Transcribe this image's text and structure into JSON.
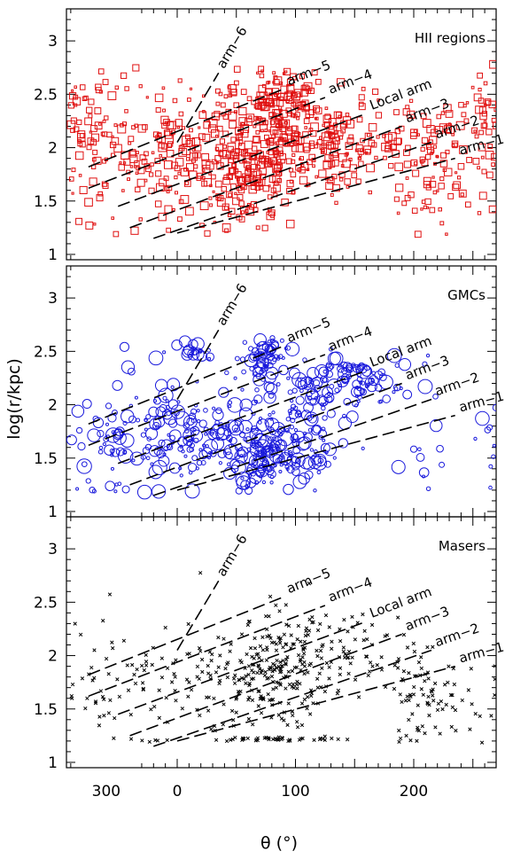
{
  "chart_data": {
    "type": "scatter",
    "xlabel": "θ (°)",
    "ylabel": "log(r/kpc)",
    "xlim": [
      330,
      270
    ],
    "x_axis_note": "Galactic azimuth; axis wraps from 330 through 0/360 down to 270",
    "x_tick_labels": [
      {
        "theta": 300,
        "label": "300"
      },
      {
        "theta": 0,
        "label": "0"
      },
      {
        "theta": 100,
        "label": "100"
      },
      {
        "theta": 200,
        "label": "200"
      }
    ],
    "ylim": [
      0.95,
      3.3
    ],
    "y_tick_labels": [
      "1",
      "1.5",
      "2",
      "2.5",
      "3"
    ],
    "y_ticks": [
      1,
      1.5,
      2,
      2.5,
      3
    ],
    "arms": [
      {
        "name": "arm-6",
        "label": "arm−6",
        "start": [
          0,
          2.05
        ],
        "end": [
          35,
          2.7
        ]
      },
      {
        "name": "arm-5",
        "label": "arm−5",
        "start": [
          -75,
          1.82
        ],
        "end": [
          90,
          2.55
        ]
      },
      {
        "name": "arm-4",
        "label": "arm−4",
        "start": [
          -75,
          1.62
        ],
        "end": [
          125,
          2.47
        ]
      },
      {
        "name": "local-arm",
        "label": "Local arm",
        "start": [
          -50,
          1.45
        ],
        "end": [
          160,
          2.32
        ]
      },
      {
        "name": "arm-3",
        "label": "arm−3",
        "start": [
          -40,
          1.25
        ],
        "end": [
          190,
          2.2
        ]
      },
      {
        "name": "arm-2",
        "label": "arm−2",
        "start": [
          -20,
          1.15
        ],
        "end": [
          215,
          2.05
        ]
      },
      {
        "name": "arm-1",
        "label": "arm−1",
        "start": [
          0,
          1.2
        ],
        "end": [
          235,
          1.9
        ]
      }
    ],
    "panels": [
      {
        "title": "HII regions",
        "marker": "square",
        "color": "#e01010",
        "clusters": [
          {
            "x": 5,
            "y": 1.95,
            "sx": 45,
            "sy": 0.3,
            "n": 220
          },
          {
            "x": 85,
            "y": 2.2,
            "sx": 22,
            "sy": 0.28,
            "n": 260
          },
          {
            "x": 60,
            "y": 1.7,
            "sx": 20,
            "sy": 0.25,
            "n": 120
          },
          {
            "x": 135,
            "y": 2.0,
            "sx": 25,
            "sy": 0.22,
            "n": 110
          },
          {
            "x": 215,
            "y": 1.9,
            "sx": 25,
            "sy": 0.3,
            "n": 110
          },
          {
            "x": 295,
            "y": 2.05,
            "sx": 20,
            "sy": 0.35,
            "n": 60
          },
          {
            "x": 265,
            "y": 2.2,
            "sx": 15,
            "sy": 0.25,
            "n": 40
          }
        ]
      },
      {
        "title": "GMCs",
        "marker": "circle",
        "color": "#1a1adc",
        "clusters": [
          {
            "x": 5,
            "y": 1.75,
            "sx": 40,
            "sy": 0.25,
            "n": 180
          },
          {
            "x": 70,
            "y": 1.55,
            "sx": 18,
            "sy": 0.15,
            "n": 150
          },
          {
            "x": 75,
            "y": 2.45,
            "sx": 10,
            "sy": 0.1,
            "n": 70
          },
          {
            "x": 110,
            "y": 1.8,
            "sx": 18,
            "sy": 0.3,
            "n": 90
          },
          {
            "x": 150,
            "y": 2.2,
            "sx": 25,
            "sy": 0.15,
            "n": 100
          },
          {
            "x": 15,
            "y": 2.5,
            "sx": 8,
            "sy": 0.05,
            "n": 20
          },
          {
            "x": 210,
            "y": 1.5,
            "sx": 15,
            "sy": 0.2,
            "n": 10
          },
          {
            "x": 295,
            "y": 1.65,
            "sx": 20,
            "sy": 0.3,
            "n": 40
          }
        ]
      },
      {
        "title": "Masers",
        "marker": "cross",
        "color": "#000000",
        "clusters": [
          {
            "x": 85,
            "y": 1.85,
            "sx": 22,
            "sy": 0.25,
            "n": 220
          },
          {
            "x": 5,
            "y": 1.7,
            "sx": 40,
            "sy": 0.3,
            "n": 100
          },
          {
            "x": 210,
            "y": 1.6,
            "sx": 20,
            "sy": 0.2,
            "n": 80
          },
          {
            "x": 150,
            "y": 2.05,
            "sx": 25,
            "sy": 0.2,
            "n": 60
          },
          {
            "x": 295,
            "y": 1.8,
            "sx": 20,
            "sy": 0.3,
            "n": 35
          },
          {
            "x": 90,
            "y": 1.22,
            "sx": 25,
            "sy": 0.01,
            "n": 40
          }
        ]
      }
    ]
  }
}
